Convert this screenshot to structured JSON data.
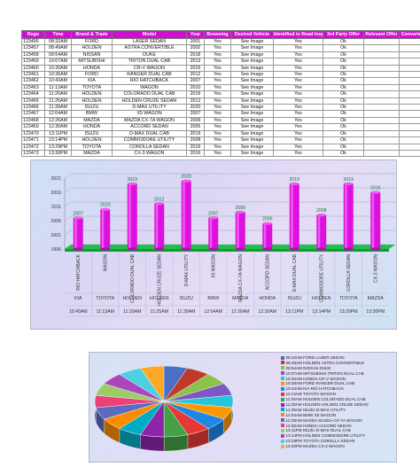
{
  "table": {
    "headers": [
      "Rego",
      "Time",
      "Brand & Trade",
      "Model",
      "Year",
      "Browsing",
      "Desired Vehicle",
      "Identified in Road Insp.",
      "3rd Party Offer",
      "Relevant Offer",
      "Converted Sale"
    ],
    "rows": [
      [
        "123456",
        "08:32AM",
        "FORD",
        "LASER SEDAN",
        "2001",
        "Yes",
        "See Image",
        "Yes",
        "Ok",
        ""
      ],
      [
        "123457",
        "08:49AM",
        "HOLDEN",
        "ASTRA CONVERTIBLE",
        "2002",
        "Yes",
        "See Image",
        "Yes",
        "Ok",
        ""
      ],
      [
        "123458",
        "09:54AM",
        "NISSAN",
        "DUKE",
        "2018",
        "Yes",
        "See Image",
        "Yes",
        "Ok",
        ""
      ],
      [
        "123459",
        "10:07AM",
        "MITSUBISHI",
        "TRITON DUAL CAB",
        "2013",
        "Yes",
        "See Image",
        "Yes",
        "Ok",
        ""
      ],
      [
        "123460",
        "10:30AM",
        "HONDA",
        "CR-V WAGON",
        "2015",
        "Yes",
        "See Image",
        "Yes",
        "Ok",
        ""
      ],
      [
        "123461",
        "10:36AM",
        "FORD",
        "RANGER DUAL CAB",
        "2012",
        "Yes",
        "See Image",
        "Yes",
        "Ok",
        ""
      ],
      [
        "123462",
        "10:43AM",
        "KIA",
        "RIO HATCHBACK",
        "2007",
        "Yes",
        "See Image",
        "Yes",
        "Ok",
        ""
      ],
      [
        "123463",
        "11:13AM",
        "TOYOTA",
        "WAGON",
        "2010",
        "Yes",
        "See Image",
        "Yes",
        "Ok",
        ""
      ],
      [
        "123464",
        "11:20AM",
        "HOLDEN",
        "COLORADO DUAL CAB",
        "2019",
        "Yes",
        "See Image",
        "Yes",
        "Ok",
        ""
      ],
      [
        "123465",
        "11:25AM",
        "HOLDEN",
        "HOLDEN CRUZE SEDAN",
        "2012",
        "Yes",
        "See Image",
        "Yes",
        "Ok",
        ""
      ],
      [
        "123466",
        "11:39AM",
        "ISUZU",
        "D-MAX UTILITY",
        "2020",
        "Yes",
        "See Image",
        "Yes",
        "Ok",
        ""
      ],
      [
        "123467",
        "12:04AM",
        "BMW",
        "X5 WAGON",
        "2007",
        "Yes",
        "See Image",
        "Yes",
        "Ok",
        ""
      ],
      [
        "123468",
        "12:26AM",
        "MAZDA",
        "MAZDA CX-7A WAGON",
        "2009",
        "Yes",
        "See Image",
        "Yes",
        "Ok",
        ""
      ],
      [
        "123469",
        "12:30AM",
        "HONDA",
        "ACCORD SEDAN",
        "2005",
        "Yes",
        "See Image",
        "Yes",
        "Ok",
        ""
      ],
      [
        "123470",
        "13:11PM",
        "ISUZU",
        "D-MAX DUAL CAB",
        "2019",
        "Yes",
        "See Image",
        "Yes",
        "Ok",
        ""
      ],
      [
        "123471",
        "13:14PM",
        "HOLDEN",
        "COMMODORE UTILITY",
        "2008",
        "Yes",
        "See Image",
        "Yes",
        "Ok",
        ""
      ],
      [
        "123472",
        "13:29PM",
        "TOYOTA",
        "COROLLA SEDAN",
        "2019",
        "Yes",
        "See Image",
        "Yes",
        "Ok",
        ""
      ],
      [
        "123473",
        "13:30PM",
        "MAZDA",
        "CX-3 WAGON",
        "2016",
        "Yes",
        "See Image",
        "Yes",
        "Ok",
        ""
      ]
    ]
  },
  "chart_data": [
    {
      "type": "bar",
      "categories": [
        "RIO HATCHBACK",
        "WAGON",
        "COLORADO DUAL CAB",
        "HOLDEN CRUZE SEDAN",
        "D-MAX UTILITY",
        "X5 WAGON",
        "MAZDA CX-7A WAGON",
        "ACCORD SEDAN",
        "D-MAX DUAL CAB",
        "COMMODORE UTILITY",
        "COROLLA SEDAN",
        "CX-3 WAGON"
      ],
      "brands": [
        "KIA",
        "TOYOTA",
        "HOLDEN",
        "HOLDEN",
        "ISUZU",
        "BMW",
        "MAZDA",
        "HONDA",
        "ISUZU",
        "HOLDEN",
        "TOYOTA",
        "MAZDA"
      ],
      "times": [
        "10:43AM",
        "11:13AM",
        "11:20AM",
        "11:25AM",
        "11:39AM",
        "12:04AM",
        "12:26AM",
        "12:30AM",
        "13:11PM",
        "13:14PM",
        "13:29PM",
        "13:30PM"
      ],
      "values": [
        2007,
        2010,
        2019,
        2012,
        2020,
        2007,
        2009,
        2005,
        2019,
        2008,
        2019,
        2016
      ],
      "yticks": [
        1996,
        2001,
        2006,
        2011,
        2016,
        2021
      ],
      "ylim": [
        1996,
        2021
      ],
      "bar_color": "#dd10dd",
      "floor_color": "#20c04a",
      "grid": true
    },
    {
      "type": "pie",
      "labels": [
        "08:32AM FORD LASER SEDAN",
        "08:49AM HOLDEN ASTRA CONVERTIBLE",
        "09:54AM NISSAN DUKE",
        "10:07AM MITSUBISHI TRITON DUAL CAB",
        "10:30AM HONDA CR-V WAGON",
        "10:36AM FORD RANGER DUAL CAB",
        "10:43AM KIA RIO HATCHBACK",
        "11:13AM TOYOTA WAGON",
        "11:20AM HOLDEN COLORADO DUAL CAB",
        "11:25AM HOLDEN HOLDEN CRUZE SEDAN",
        "11:39AM ISUZU D-MAX UTILITY",
        "12:04AM BMW X5 WAGON",
        "12:26AM MAZDA MAZDA CX-7A WAGON",
        "12:30AM HONDA ACCORD SEDAN",
        "13:11PM ISUZU D-MAX DUAL CAB",
        "13:14PM HOLDEN COMMODORE UTILITY",
        "13:29PM TOYOTA COROLLA SEDAN",
        "13:30PM MAZDA CX-3 WAGON"
      ],
      "values": [
        2001,
        2002,
        2018,
        2013,
        2015,
        2012,
        2007,
        2010,
        2019,
        2012,
        2020,
        2007,
        2009,
        2005,
        2019,
        2008,
        2019,
        2016
      ],
      "colors": [
        "#4a6fc4",
        "#c0392b",
        "#8bc34a",
        "#7e57c2",
        "#26c6da",
        "#ff9800",
        "#1e88e5",
        "#e53935",
        "#43a047",
        "#8e24aa",
        "#00acc1",
        "#fb8c00",
        "#5c6bc0",
        "#ec407a",
        "#9ccc65",
        "#ab47bc",
        "#4dd0e1",
        "#ffa726"
      ],
      "legend_position": "right"
    }
  ]
}
